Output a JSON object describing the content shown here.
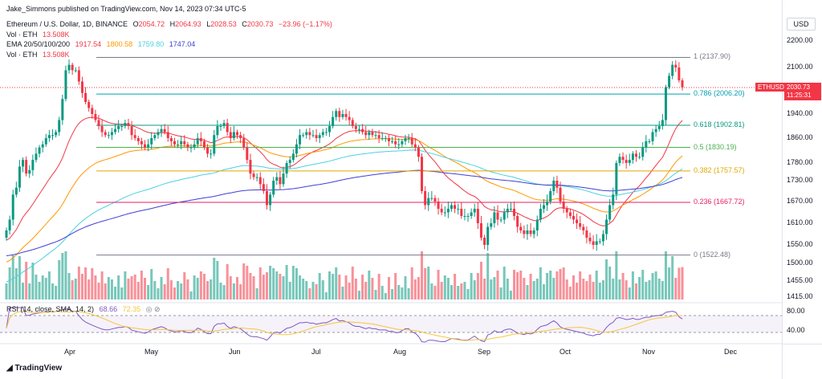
{
  "header": {
    "author_line": "Jake_Simmons published on TradingView.com, Nov 14, 2023 07:34 UTC-5",
    "symbol": "Ethereum / U.S. Dollar, 1D, BINANCE",
    "ohlc": [
      {
        "label": "O",
        "value": "2054.72"
      },
      {
        "label": "H",
        "value": "2064.93"
      },
      {
        "label": "L",
        "value": "2028.53"
      },
      {
        "label": "C",
        "value": "2030.73"
      }
    ],
    "change": "−23.96 (−1.17%)",
    "vol_line_1": {
      "label": "Vol · ETH",
      "value": "13.508K"
    },
    "ema_line": {
      "label": "EMA 20/50/100/200",
      "values": [
        "1917.54",
        "1800.58",
        "1759.80",
        "1747.04"
      ]
    },
    "vol_line_2": {
      "label": "Vol · ETH",
      "value": "13.508K"
    }
  },
  "price_axis": {
    "currency": "USD",
    "ticks": [
      "2200.00",
      "2100.00",
      "2020.00",
      "1940.00",
      "1860.00",
      "1780.00",
      "1730.00",
      "1670.00",
      "1610.00",
      "1550.00",
      "1500.00",
      "1455.00",
      "1415.00"
    ],
    "last_tag": {
      "symbol": "ETHUSD",
      "price": "2030.73",
      "countdown": "11:25:31"
    }
  },
  "rsi": {
    "label": "RSI (14, close, SMA, 14, 2)",
    "value": "68.66",
    "sma_value": "72.35",
    "ticks": [
      "80.00",
      "40.00"
    ]
  },
  "x_axis": {
    "labels": [
      "Apr",
      "May",
      "Jun",
      "Jul",
      "Aug",
      "Sep",
      "Oct",
      "Nov",
      "Dec"
    ]
  },
  "footer": {
    "brand": "TradingView"
  },
  "colors": {
    "up": "#089981",
    "down": "#f23645",
    "ema20": "#f23645",
    "ema50": "#ff9800",
    "ema100": "#4dd0e1",
    "ema200": "#3f3fd6",
    "rsi": "#7e57c2",
    "rsi_sma": "#f7c53c"
  },
  "chart_data": {
    "type": "candlestick",
    "title": "Ethereum / U.S. Dollar, 1D, BINANCE",
    "fib_levels": [
      {
        "ratio": "1",
        "price": 2137.9,
        "label": "1 (2137.90)",
        "color": "#787b86"
      },
      {
        "ratio": "0.786",
        "price": 2006.2,
        "label": "0.786 (2006.20)",
        "color": "#00a0b0"
      },
      {
        "ratio": "0.618",
        "price": 1902.81,
        "label": "0.618 (1902.81)",
        "color": "#089981"
      },
      {
        "ratio": "0.5",
        "price": 1830.19,
        "label": "0.5 (1830.19)",
        "color": "#4caf50"
      },
      {
        "ratio": "0.382",
        "price": 1757.57,
        "label": "0.382 (1757.57)",
        "color": "#e0a800"
      },
      {
        "ratio": "0.236",
        "price": 1667.72,
        "label": "0.236 (1667.72)",
        "color": "#e91e63"
      },
      {
        "ratio": "0",
        "price": 1522.48,
        "label": "0 (1522.48)",
        "color": "#787b86"
      }
    ],
    "close_series": [
      1590,
      1620,
      1690,
      1710,
      1770,
      1790,
      1750,
      1760,
      1790,
      1810,
      1830,
      1840,
      1860,
      1870,
      1870,
      1880,
      1920,
      1990,
      2090,
      2110,
      2090,
      2090,
      2050,
      2010,
      1980,
      1960,
      1940,
      1920,
      1900,
      1880,
      1870,
      1870,
      1880,
      1890,
      1900,
      1900,
      1910,
      1900,
      1870,
      1860,
      1850,
      1840,
      1830,
      1840,
      1860,
      1870,
      1880,
      1890,
      1880,
      1860,
      1850,
      1840,
      1840,
      1850,
      1840,
      1830,
      1830,
      1840,
      1860,
      1850,
      1830,
      1810,
      1810,
      1870,
      1900,
      1900,
      1910,
      1880,
      1860,
      1880,
      1870,
      1860,
      1830,
      1790,
      1750,
      1740,
      1740,
      1720,
      1700,
      1660,
      1690,
      1730,
      1740,
      1720,
      1750,
      1780,
      1790,
      1810,
      1840,
      1870,
      1870,
      1880,
      1870,
      1870,
      1860,
      1870,
      1880,
      1880,
      1900,
      1930,
      1950,
      1930,
      1940,
      1930,
      1920,
      1900,
      1890,
      1890,
      1880,
      1870,
      1880,
      1870,
      1870,
      1860,
      1860,
      1860,
      1850,
      1850,
      1840,
      1840,
      1850,
      1860,
      1860,
      1840,
      1830,
      1800,
      1700,
      1660,
      1680,
      1680,
      1670,
      1650,
      1640,
      1640,
      1650,
      1660,
      1650,
      1650,
      1630,
      1630,
      1630,
      1640,
      1650,
      1610,
      1570,
      1550,
      1600,
      1610,
      1640,
      1620,
      1620,
      1640,
      1650,
      1650,
      1630,
      1600,
      1590,
      1580,
      1590,
      1580,
      1590,
      1620,
      1650,
      1660,
      1670,
      1700,
      1730,
      1710,
      1670,
      1650,
      1640,
      1630,
      1620,
      1610,
      1600,
      1590,
      1570,
      1560,
      1550,
      1560,
      1560,
      1580,
      1620,
      1660,
      1690,
      1780,
      1800,
      1790,
      1780,
      1790,
      1810,
      1800,
      1800,
      1830,
      1850,
      1850,
      1880,
      1890,
      1900,
      1920,
      2030,
      2070,
      2110,
      2100,
      2054,
      2030
    ]
  }
}
